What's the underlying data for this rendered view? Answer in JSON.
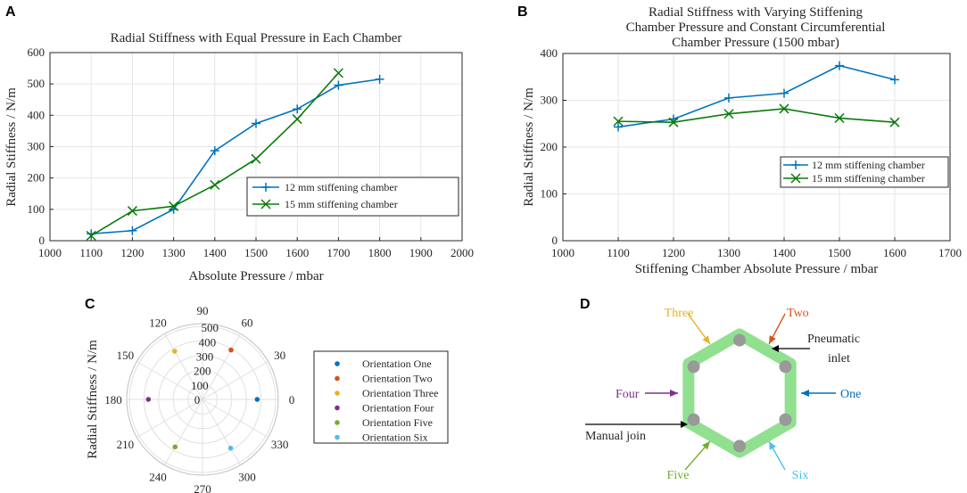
{
  "chart_data": [
    {
      "type": "line",
      "panel": "A",
      "title": "Radial Stiffness with Equal Pressure in Each Chamber",
      "xlabel": "Absolute Pressure / mbar",
      "ylabel": "Radial Stiffness / N/m",
      "xlim": [
        1000,
        2000
      ],
      "ylim": [
        0,
        600
      ],
      "xticks": [
        1000,
        1100,
        1200,
        1300,
        1400,
        1500,
        1600,
        1700,
        1800,
        1900,
        2000
      ],
      "yticks": [
        0,
        100,
        200,
        300,
        400,
        500,
        600
      ],
      "grid": true,
      "legend_position": "lower-right",
      "series": [
        {
          "name": "12 mm stiffening chamber",
          "color": "#0072bd",
          "marker": "+",
          "x": [
            1100,
            1200,
            1300,
            1400,
            1500,
            1600,
            1700,
            1800
          ],
          "y": [
            22,
            32,
            100,
            287,
            374,
            420,
            496,
            515
          ]
        },
        {
          "name": "15 mm stiffening chamber",
          "color": "#0a7a0a",
          "marker": "x",
          "x": [
            1100,
            1200,
            1300,
            1400,
            1500,
            1600,
            1700
          ],
          "y": [
            16,
            95,
            110,
            178,
            261,
            388,
            535
          ]
        }
      ]
    },
    {
      "type": "line",
      "panel": "B",
      "title_lines": [
        "Radial Stiffness with Varying Stiffening",
        "Chamber Pressure and Constant Circumferential",
        "Chamber Pressure (1500 mbar)"
      ],
      "xlabel": "Stiffening Chamber Absolute Pressure / mbar",
      "ylabel": "Radial Stiffness / N/m",
      "xlim": [
        1000,
        1700
      ],
      "ylim": [
        0,
        400
      ],
      "xticks": [
        1000,
        1100,
        1200,
        1300,
        1400,
        1500,
        1600,
        1700
      ],
      "yticks": [
        0,
        100,
        200,
        300,
        400
      ],
      "grid": true,
      "legend_position": "lower-right",
      "series": [
        {
          "name": "12 mm stiffening chamber",
          "color": "#0072bd",
          "marker": "+",
          "x": [
            1100,
            1200,
            1300,
            1400,
            1500,
            1600
          ],
          "y": [
            243,
            260,
            305,
            315,
            374,
            344
          ]
        },
        {
          "name": "15 mm stiffening chamber",
          "color": "#0a7a0a",
          "marker": "x",
          "x": [
            1100,
            1200,
            1300,
            1400,
            1500,
            1600
          ],
          "y": [
            255,
            253,
            271,
            282,
            262,
            253
          ]
        }
      ]
    },
    {
      "type": "scatter",
      "panel": "C",
      "subtype": "polar",
      "ylabel": "Radial Stiffness / N/m",
      "rlim": [
        0,
        500
      ],
      "rticks": [
        0,
        100,
        200,
        300,
        400,
        500
      ],
      "theta_ticks": [
        0,
        30,
        60,
        90,
        120,
        150,
        180,
        210,
        240,
        270,
        300,
        330
      ],
      "legend_position": "right",
      "series": [
        {
          "name": "Orientation One",
          "color": "#0072bd",
          "theta": 0,
          "r": 374
        },
        {
          "name": "Orientation Two",
          "color": "#d95319",
          "theta": 60,
          "r": 390
        },
        {
          "name": "Orientation Three",
          "color": "#edb120",
          "theta": 120,
          "r": 380
        },
        {
          "name": "Orientation Four",
          "color": "#7e2f8e",
          "theta": 180,
          "r": 370
        },
        {
          "name": "Orientation Five",
          "color": "#77ac30",
          "theta": 240,
          "r": 375
        },
        {
          "name": "Orientation Six",
          "color": "#4dbeee",
          "theta": 300,
          "r": 385
        }
      ]
    }
  ],
  "diagram_D": {
    "panel": "D",
    "labels": [
      {
        "text": "One",
        "color": "#0072bd"
      },
      {
        "text": "Two",
        "color": "#d95319"
      },
      {
        "text": "Three",
        "color": "#edb120"
      },
      {
        "text": "Four",
        "color": "#7e2f8e"
      },
      {
        "text": "Five",
        "color": "#77ac30"
      },
      {
        "text": "Six",
        "color": "#4dbeee"
      }
    ],
    "pneumatic_line1": "Pneumatic",
    "pneumatic_line2": "inlet",
    "manual_join": "Manual join",
    "ring_color": "#90e090",
    "node_color": "#999999"
  }
}
